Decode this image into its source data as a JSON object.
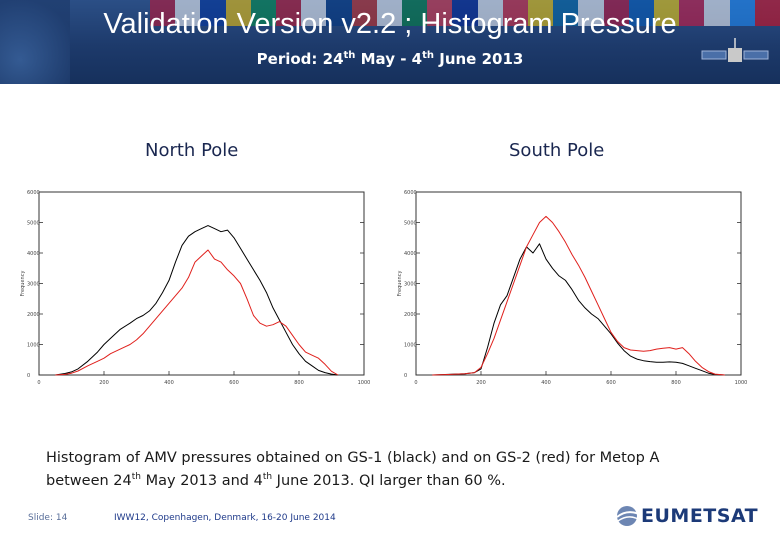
{
  "header": {
    "title": "Validation Version v2.2 ; Histogram Pressure",
    "subtitle": {
      "pre": "Period: 24",
      "sup1": "th",
      "mid": " May - 4",
      "sup2": "th",
      "post": " June 2013"
    },
    "flag_colors": [
      "#c8102e",
      "#ffffff",
      "#0033a0",
      "#ffcc00",
      "#009246",
      "#ce1126",
      "#ffffff",
      "#003580",
      "#d52b1e",
      "#ffffff",
      "#00843d",
      "#ef3340",
      "#002395",
      "#ffffff",
      "#ed2939",
      "#ffd100",
      "#006aa7",
      "#ffffff",
      "#c60c30",
      "#005bbb",
      "#ffd500",
      "#dc143c",
      "#ffffff",
      "#1e90ff",
      "#e30a17"
    ]
  },
  "labels": {
    "north": "North Pole",
    "south": "South Pole"
  },
  "caption": {
    "line1": "Histogram of AMV pressures obtained on GS‑1 (black) and on GS‑2 (red) for Metop A",
    "l2a": "between 24",
    "l2sup1": "th",
    "l2b": "  May 2013 and 4",
    "l2sup2": "th",
    "l2c": "  June 2013.  QI larger than 60 %."
  },
  "footer": {
    "slide": "Slide: 14",
    "event": "IWW12, Copenhagen, Denmark, 16-20 June 2014",
    "logo": "EUMETSAT"
  },
  "colors": {
    "gs1": "#000000",
    "gs2": "#e0201c",
    "axis": "#333333"
  },
  "chart_data": [
    {
      "type": "line",
      "title": "North Pole",
      "ylabel": "Frequency",
      "xlim": [
        0,
        1000
      ],
      "ylim": [
        0,
        6000
      ],
      "xticks": [
        0,
        200,
        400,
        600,
        800,
        1000
      ],
      "xtick_labels": [
        "0",
        "200",
        "400",
        "600",
        "800",
        "1000"
      ],
      "yticks": [
        0,
        1000,
        2000,
        3000,
        4000,
        5000,
        6000
      ],
      "ytick_labels": [
        "0",
        "1000",
        "2000",
        "3000",
        "4000",
        "5000",
        "6000"
      ],
      "x": [
        50,
        80,
        100,
        120,
        150,
        180,
        200,
        220,
        250,
        280,
        300,
        320,
        340,
        360,
        380,
        400,
        420,
        440,
        460,
        480,
        500,
        520,
        540,
        560,
        580,
        600,
        620,
        640,
        660,
        680,
        700,
        720,
        740,
        760,
        780,
        800,
        820,
        840,
        860,
        880,
        900,
        920
      ],
      "series": [
        {
          "color": "#000000",
          "values": [
            0,
            50,
            100,
            200,
            450,
            750,
            1000,
            1200,
            1500,
            1700,
            1850,
            1950,
            2100,
            2350,
            2700,
            3100,
            3700,
            4250,
            4550,
            4700,
            4800,
            4900,
            4800,
            4700,
            4750,
            4500,
            4150,
            3800,
            3450,
            3100,
            2700,
            2200,
            1800,
            1400,
            1000,
            700,
            450,
            300,
            150,
            80,
            30,
            0
          ]
        },
        {
          "color": "#e0201c",
          "values": [
            0,
            20,
            60,
            130,
            300,
            450,
            550,
            700,
            850,
            1000,
            1150,
            1350,
            1600,
            1850,
            2100,
            2350,
            2600,
            2850,
            3200,
            3700,
            3900,
            4100,
            3800,
            3700,
            3450,
            3250,
            3000,
            2500,
            1950,
            1700,
            1600,
            1650,
            1750,
            1600,
            1300,
            1000,
            750,
            650,
            550,
            350,
            120,
            0
          ]
        }
      ]
    },
    {
      "type": "line",
      "title": "South Pole",
      "ylabel": "Frequency",
      "xlim": [
        0,
        1000
      ],
      "ylim": [
        0,
        6000
      ],
      "xticks": [
        0,
        200,
        400,
        600,
        800,
        1000
      ],
      "xtick_labels": [
        "0",
        "200",
        "400",
        "600",
        "800",
        "1000"
      ],
      "yticks": [
        0,
        1000,
        2000,
        3000,
        4000,
        5000,
        6000
      ],
      "ytick_labels": [
        "0",
        "1000",
        "2000",
        "3000",
        "4000",
        "5000",
        "6000"
      ],
      "x": [
        50,
        100,
        150,
        180,
        200,
        220,
        240,
        260,
        280,
        300,
        320,
        340,
        360,
        380,
        400,
        420,
        440,
        460,
        480,
        500,
        520,
        540,
        560,
        580,
        600,
        620,
        640,
        660,
        680,
        700,
        720,
        740,
        760,
        780,
        800,
        820,
        840,
        860,
        880,
        900,
        920,
        950
      ],
      "series": [
        {
          "color": "#000000",
          "values": [
            0,
            20,
            40,
            80,
            200,
            900,
            1700,
            2300,
            2600,
            3200,
            3800,
            4200,
            4000,
            4300,
            3800,
            3500,
            3250,
            3100,
            2800,
            2450,
            2200,
            2000,
            1850,
            1600,
            1350,
            1050,
            800,
            620,
            520,
            470,
            440,
            420,
            420,
            430,
            420,
            380,
            300,
            220,
            140,
            60,
            20,
            0
          ]
        },
        {
          "color": "#e0201c",
          "values": [
            0,
            15,
            40,
            80,
            250,
            700,
            1200,
            1800,
            2400,
            3000,
            3600,
            4200,
            4600,
            5000,
            5200,
            5000,
            4700,
            4350,
            3950,
            3600,
            3200,
            2750,
            2300,
            1850,
            1400,
            1100,
            900,
            820,
            800,
            780,
            800,
            850,
            880,
            900,
            850,
            900,
            700,
            450,
            250,
            110,
            30,
            0
          ]
        }
      ]
    }
  ]
}
